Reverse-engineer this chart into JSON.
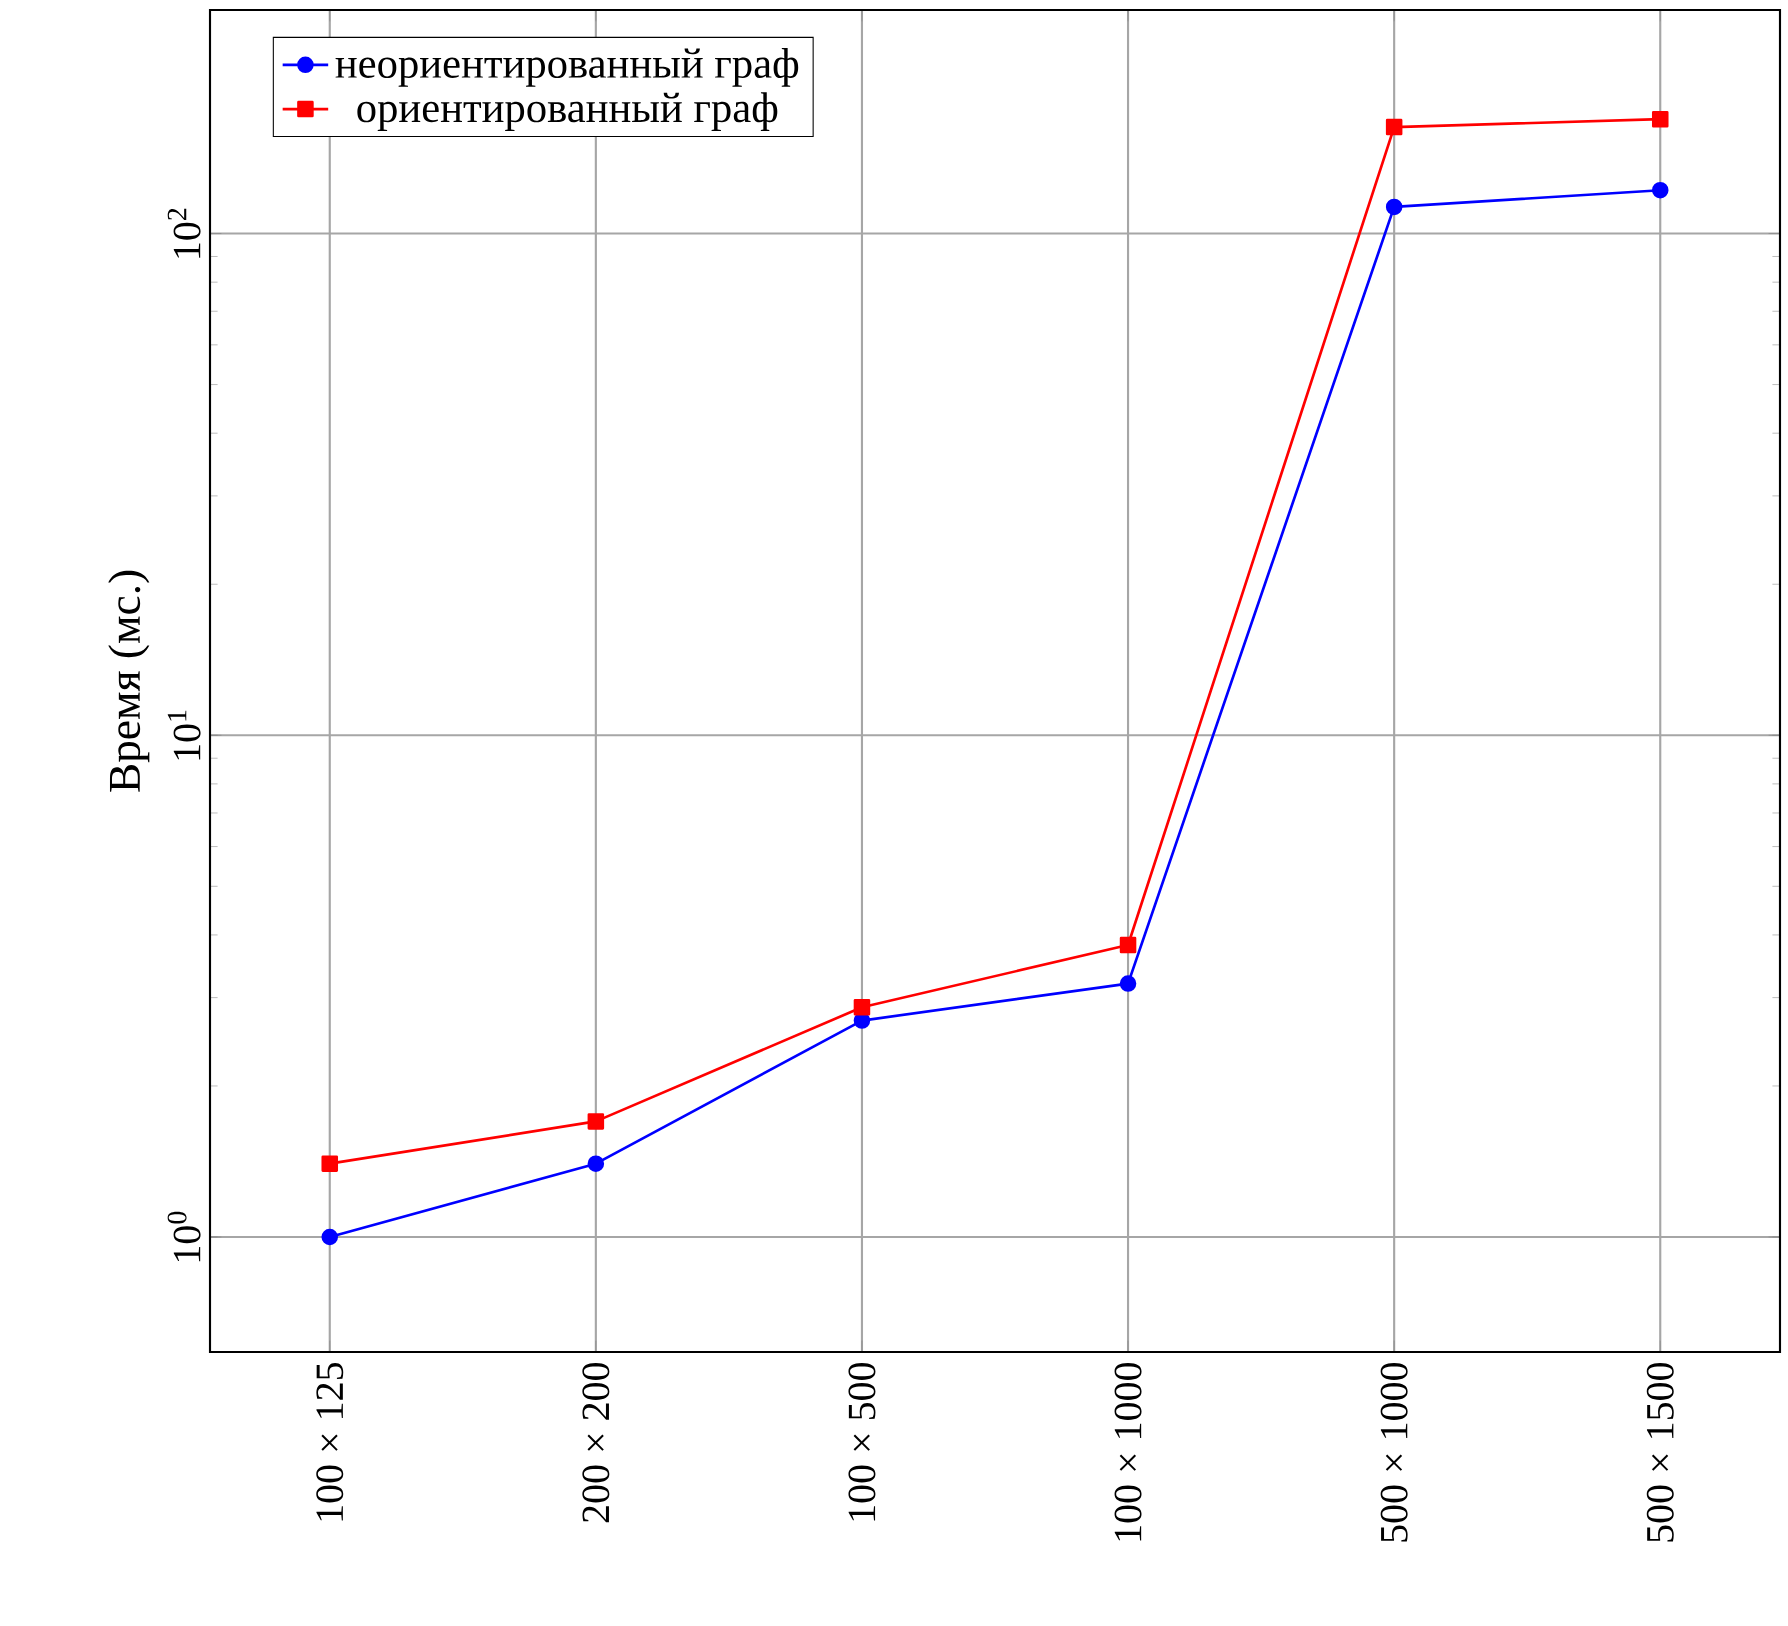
{
  "chart_data": {
    "type": "line",
    "ylabel": "Время (мс.)",
    "log": "y",
    "grid": true,
    "legend": "top left",
    "categories": [
      "100 × 125",
      "200 × 200",
      "100 × 500",
      "100 × 1000",
      "500 × 1000",
      "500 × 1500"
    ],
    "ylim": [
      0.59,
      279
    ],
    "yticks": [
      {
        "value": 1,
        "label": "10$^{0}$"
      },
      {
        "value": 10,
        "label": "10$^{1}$"
      },
      {
        "value": 100,
        "label": "10$^{2}$"
      }
    ],
    "series": [
      {
        "name": "неориентированный граф",
        "color": "#0000ff",
        "marker": "circle",
        "values": [
          1.0,
          1.4,
          2.7,
          3.2,
          113,
          122
        ]
      },
      {
        "name": "ориентированный граф",
        "color": "#ff0000",
        "marker": "square",
        "values": [
          1.4,
          1.7,
          2.87,
          3.82,
          163,
          169
        ]
      }
    ]
  }
}
